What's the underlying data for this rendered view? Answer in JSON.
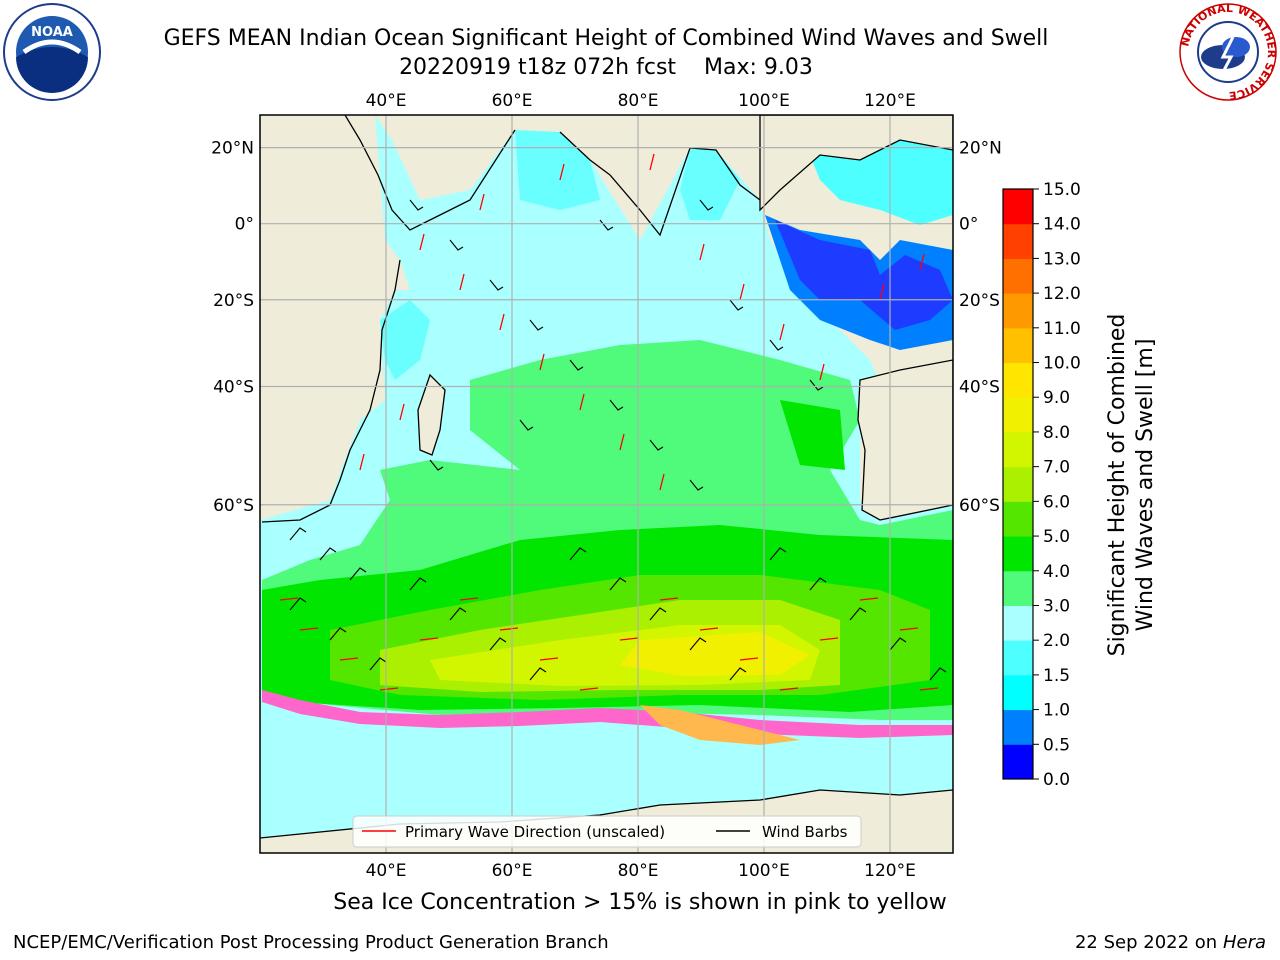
{
  "title": "GEFS MEAN Indian Ocean Significant Height of Combined Wind Waves and Swell",
  "subtitle_run": "20220919 t18z 072h fcst",
  "subtitle_max": "Max: 9.03",
  "logos": {
    "left": "NOAA",
    "right_ring": "NATIONAL WEATHER SERVICE"
  },
  "map": {
    "lon_labels": [
      "40°E",
      "60°E",
      "80°E",
      "100°E",
      "120°E"
    ],
    "lat_labels": [
      "20°N",
      "0°",
      "20°S",
      "40°S",
      "60°S"
    ],
    "lon_values": [
      40,
      60,
      80,
      100,
      120
    ],
    "lat_values": [
      20,
      0,
      -20,
      -40,
      -60
    ],
    "extent": {
      "lon": [
        20,
        130
      ],
      "lat": [
        -84,
        28
      ]
    },
    "colors": {
      "land": "#efedda",
      "ice_shelf": "#ffffff",
      "grid": "#b0b0b0"
    }
  },
  "legend": {
    "wave": "Primary Wave Direction (unscaled)",
    "barb": "Wind Barbs",
    "wave_color": "#ff0000",
    "barb_color": "#000000"
  },
  "colorbar": {
    "label_line1": "Significant Height of Combined",
    "label_line2": "Wind Waves and Swell [m]",
    "ticks": [
      "0.0",
      "0.5",
      "1.0",
      "1.5",
      "2.0",
      "3.0",
      "4.0",
      "5.0",
      "6.0",
      "7.0",
      "8.0",
      "9.0",
      "10.0",
      "11.0",
      "12.0",
      "13.0",
      "14.0",
      "15.0"
    ],
    "colors": [
      "#0000ff",
      "#0080ff",
      "#00ffff",
      "#4dffff",
      "#aaffff",
      "#50fa7a",
      "#00e600",
      "#55e600",
      "#aaf000",
      "#d2f500",
      "#f0f000",
      "#ffe600",
      "#ffc000",
      "#ff9900",
      "#ff7000",
      "#ff4000",
      "#ff0000"
    ]
  },
  "caption": "Sea Ice Concentration > 15% is shown in pink to yellow",
  "footer_left": "NCEP/EMC/Verification Post Processing Product Generation Branch",
  "footer_date": "22 Sep 2022 on",
  "footer_host": "Hera"
}
